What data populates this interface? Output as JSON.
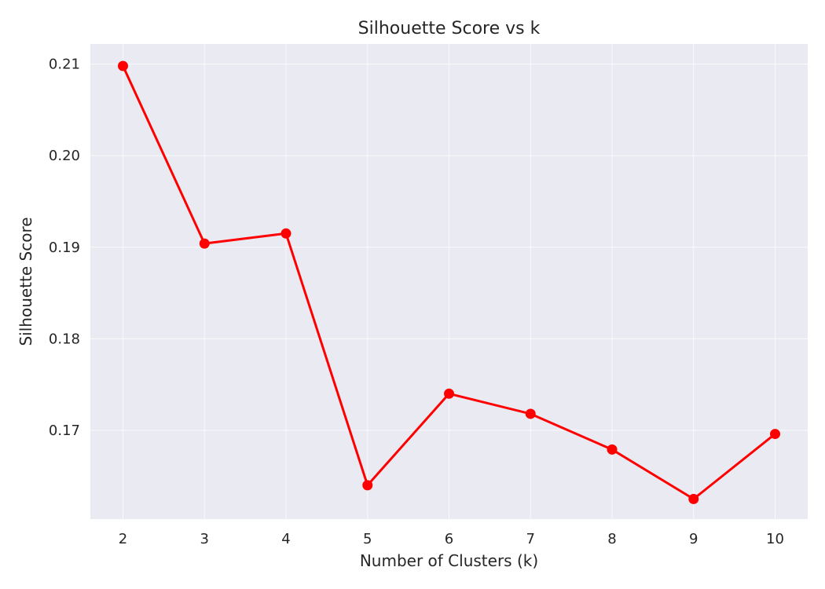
{
  "chart_data": {
    "type": "line",
    "title": "Silhouette Score vs k",
    "xlabel": "Number of Clusters (k)",
    "ylabel": "Silhouette Score",
    "x": [
      2,
      3,
      4,
      5,
      6,
      7,
      8,
      9,
      10
    ],
    "x_tick_labels": [
      "2",
      "3",
      "4",
      "5",
      "6",
      "7",
      "8",
      "9",
      "10"
    ],
    "y_ticks": [
      0.17,
      0.18,
      0.19,
      0.2,
      0.21
    ],
    "y_tick_labels": [
      "0.17",
      "0.18",
      "0.19",
      "0.20",
      "0.21"
    ],
    "xlim": [
      1.6,
      10.4
    ],
    "ylim": [
      0.1603,
      0.2122
    ],
    "grid": true,
    "series": [
      {
        "values": [
          0.2098,
          0.1904,
          0.1915,
          0.164,
          0.174,
          0.1718,
          0.1679,
          0.1625,
          0.1696
        ],
        "color": "#ff0000",
        "marker": "circle"
      }
    ],
    "colors": {
      "plot_background": "#eaeaf2",
      "grid": "#ffffff",
      "text": "#262626",
      "line": "#ff0000"
    }
  }
}
